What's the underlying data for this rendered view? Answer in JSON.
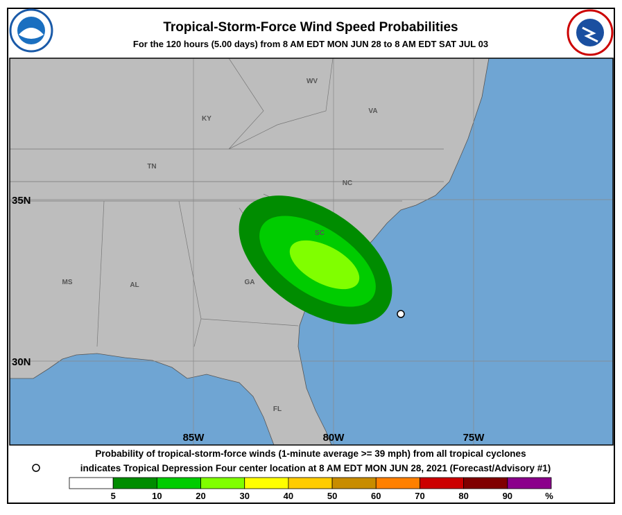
{
  "header": {
    "title": "Tropical-Storm-Force Wind Speed Probabilities",
    "subtitle": "For the 120 hours (5.00 days) from 8 AM EDT MON JUN 28 to 8 AM EDT SAT JUL 03"
  },
  "map": {
    "state_labels": [
      "WV",
      "VA",
      "KY",
      "TN",
      "NC",
      "SC",
      "GA",
      "AL",
      "MS",
      "FL"
    ],
    "lat_labels": [
      "35N",
      "30N"
    ],
    "lon_labels": [
      "85W",
      "80W",
      "75W"
    ]
  },
  "footer": {
    "line1": "Probability of tropical-storm-force winds (1-minute average >= 39 mph) from all tropical cyclones",
    "line2": "indicates Tropical Depression Four center location at 8 AM EDT MON JUN 28, 2021 (Forecast/Advisory #1)"
  },
  "legend": {
    "colors": [
      "#ffffff",
      "#008c00",
      "#00cc00",
      "#80ff00",
      "#ffff00",
      "#ffcc00",
      "#c88c00",
      "#ff8000",
      "#cc0000",
      "#800000",
      "#8b008b"
    ],
    "labels": [
      "5",
      "10",
      "20",
      "30",
      "40",
      "50",
      "60",
      "70",
      "80",
      "90",
      "%"
    ]
  }
}
